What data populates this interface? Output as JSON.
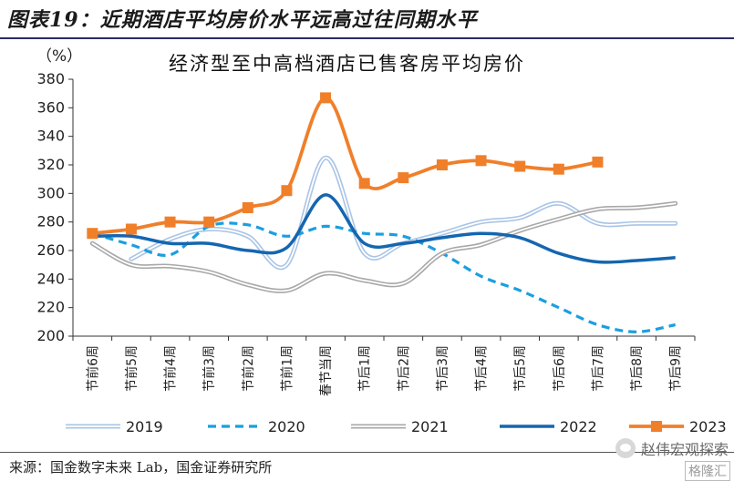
{
  "figure": {
    "title": "图表19：近期酒店平均房价水平远高过往同期水平",
    "source": "来源：国金数字未来 Lab，国金证券研究所",
    "watermark": "赵伟宏观探索",
    "watermark2": "格隆汇"
  },
  "chart_data": {
    "type": "line",
    "title": "经济型至中高档酒店已售客房平均房价",
    "unit": "（%）",
    "ylim": [
      200,
      380
    ],
    "yticks": [
      200,
      220,
      240,
      260,
      280,
      300,
      320,
      340,
      360,
      380
    ],
    "grid": false,
    "legend_position": "bottom",
    "categories": [
      "节前6周",
      "节前5周",
      "节前4周",
      "节前3周",
      "节前2周",
      "节前1周",
      "春节当周",
      "节后1周",
      "节后2周",
      "节后3周",
      "节后4周",
      "节后5周",
      "节后6周",
      "节后7周",
      "节后8周",
      "节后9周"
    ],
    "series": [
      {
        "name": "2019",
        "color": "#a9c4e6",
        "style": "double",
        "values": [
          null,
          254,
          268,
          275,
          270,
          250,
          325,
          258,
          265,
          272,
          280,
          283,
          293,
          279,
          279,
          279
        ]
      },
      {
        "name": "2020",
        "color": "#1a9fe0",
        "style": "dashed",
        "values": [
          272,
          264,
          257,
          277,
          278,
          270,
          277,
          272,
          270,
          258,
          242,
          232,
          220,
          208,
          203,
          208
        ]
      },
      {
        "name": "2021",
        "color": "#a8a8a8",
        "style": "double",
        "values": [
          265,
          250,
          249,
          245,
          236,
          232,
          244,
          239,
          237,
          258,
          264,
          274,
          282,
          289,
          290,
          293
        ]
      },
      {
        "name": "2022",
        "color": "#1466b0",
        "style": "solid",
        "values": [
          270,
          270,
          265,
          265,
          260,
          262,
          299,
          265,
          265,
          269,
          272,
          269,
          258,
          252,
          253,
          255
        ]
      },
      {
        "name": "2023",
        "color": "#f07f2a",
        "style": "marker",
        "values": [
          272,
          275,
          280,
          280,
          290,
          302,
          367,
          307,
          311,
          320,
          323,
          319,
          317,
          322,
          null,
          null
        ]
      }
    ]
  }
}
